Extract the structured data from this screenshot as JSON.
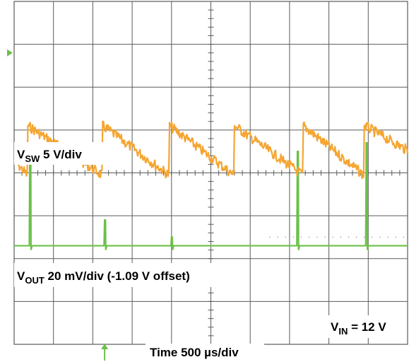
{
  "chart_data": {
    "type": "line",
    "grid": {
      "h_divisions": 10,
      "v_divisions": 8,
      "subdivisions": 5
    },
    "x": {
      "label": "Time 500 µs/div",
      "unit": "µs",
      "per_div": 500
    },
    "series": [
      {
        "name": "V_SW",
        "label_main": "V",
        "label_sub": "SW",
        "label_rest": " 5 V/div",
        "color": "#6cc04a",
        "baseline_div": 2.3,
        "pulse_times_div": [
          0.4,
          2.3,
          4.0,
          7.2,
          8.95
        ],
        "pulse_heights_div": [
          2.4,
          0.6,
          0.2,
          2.2,
          2.4
        ],
        "marker_level_div": 1.0
      },
      {
        "name": "V_OUT",
        "label_main": "V",
        "label_sub": "OUT",
        "label_rest": " 20 mV/div (-1.09 V offset)",
        "color": "#f5a531",
        "unit": "mV",
        "per_div": 20,
        "offset_v": -1.09,
        "ramp_peaks_t_div": [
          0.35,
          2.25,
          3.95,
          5.6,
          7.35,
          8.9
        ],
        "peak_div": 5.1,
        "trough_div": 3.95,
        "noise_div": 0.12
      }
    ],
    "annotations": [
      {
        "main": "V",
        "sub": "IN",
        "rest": " = 12 V"
      }
    ],
    "trigger_marker_color": "#6cc04a"
  }
}
